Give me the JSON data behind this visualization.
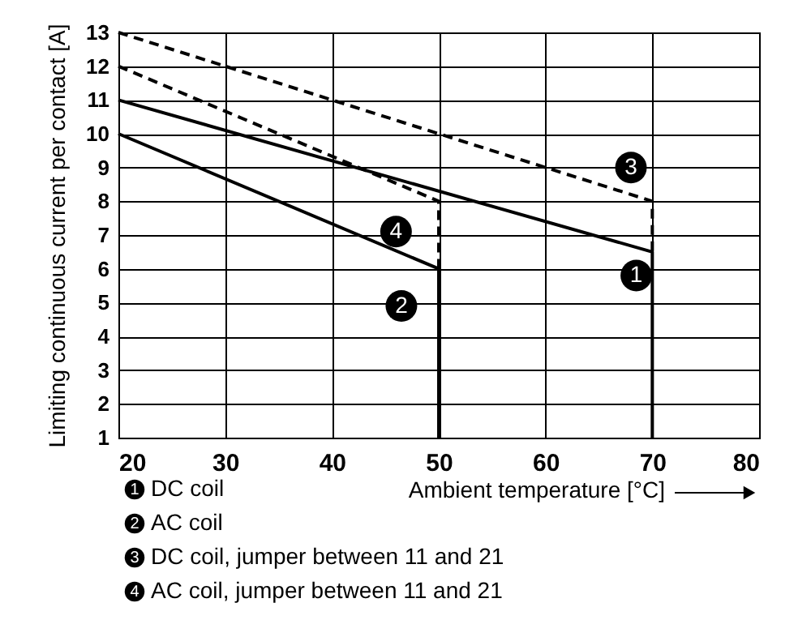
{
  "chart_data": {
    "type": "line",
    "xlabel": "Ambient temperature [°C]",
    "ylabel": "Limiting continuous current per contact [A]",
    "xlim": [
      20,
      80
    ],
    "xticks": [
      20,
      30,
      40,
      50,
      60,
      70,
      80
    ],
    "ylim": [
      1,
      13
    ],
    "yticks": [
      1,
      2,
      3,
      4,
      5,
      6,
      7,
      8,
      9,
      10,
      11,
      12,
      13
    ],
    "grid": true,
    "legend": "bottom left",
    "series": [
      {
        "name": "DC coil",
        "color": "#000000",
        "x": [
          20,
          70,
          70
        ],
        "values": [
          11,
          6.5,
          1
        ],
        "line_style": "solid"
      },
      {
        "name": "AC coil",
        "color": "#000000",
        "x": [
          20,
          50,
          50
        ],
        "values": [
          10,
          6,
          1
        ],
        "line_style": "solid"
      },
      {
        "name": "DC coil, jumper between 11 and 21",
        "color": "#000000",
        "x": [
          20,
          70,
          70
        ],
        "values": [
          13,
          8,
          6.5
        ],
        "line_style": "dashed"
      },
      {
        "name": "AC coil, jumper between 11 and 21",
        "color": "#000000",
        "x": [
          20,
          50,
          50
        ],
        "values": [
          12,
          8,
          6
        ],
        "line_style": "dashed"
      }
    ],
    "annotations": [
      {
        "text": "1",
        "x": 68.5,
        "y": 5.8
      },
      {
        "text": "2",
        "x": 46.5,
        "y": 4.9
      },
      {
        "text": "3",
        "x": 68,
        "y": 9
      },
      {
        "text": "4",
        "x": 46,
        "y": 7.1
      }
    ]
  }
}
